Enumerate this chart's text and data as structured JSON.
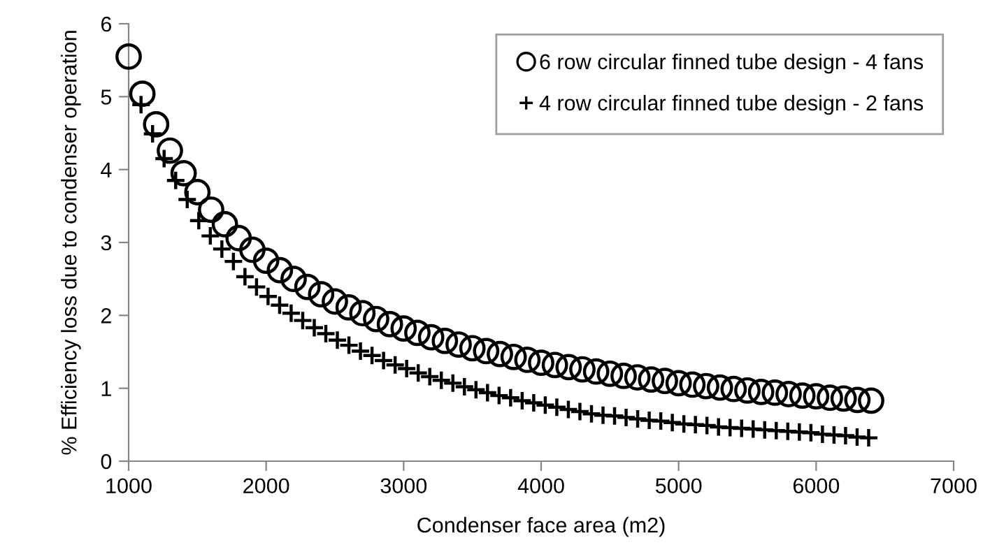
{
  "chart_data": {
    "type": "scatter",
    "xlabel": "Condenser face area (m2)",
    "ylabel": "% Efficiency loss due to condenser operation",
    "xlim": [
      1000,
      7000
    ],
    "xticks": [
      1000,
      2000,
      3000,
      4000,
      5000,
      6000,
      7000
    ],
    "ylim": [
      0,
      6
    ],
    "yticks": [
      0,
      1,
      2,
      3,
      4,
      5,
      6
    ],
    "grid": false,
    "legend": "top right",
    "series": [
      {
        "name": "6 row circular finned tube design - 4 fans",
        "color": "#000000",
        "marker": "circle",
        "x": [
          1000,
          1100,
          1200,
          1300,
          1400,
          1500,
          1600,
          1700,
          1800,
          1900,
          2000,
          2100,
          2200,
          2300,
          2400,
          2500,
          2600,
          2700,
          2800,
          2900,
          3000,
          3100,
          3200,
          3300,
          3400,
          3500,
          3600,
          3700,
          3800,
          3900,
          4000,
          4100,
          4200,
          4300,
          4400,
          4500,
          4600,
          4700,
          4800,
          4900,
          5000,
          5100,
          5200,
          5300,
          5400,
          5500,
          5600,
          5700,
          5800,
          5900,
          6000,
          6100,
          6200,
          6300,
          6400
        ],
        "values": [
          5.55,
          5.04,
          4.62,
          4.26,
          3.95,
          3.69,
          3.45,
          3.25,
          3.06,
          2.9,
          2.75,
          2.62,
          2.5,
          2.39,
          2.29,
          2.19,
          2.11,
          2.03,
          1.95,
          1.88,
          1.82,
          1.76,
          1.7,
          1.65,
          1.6,
          1.55,
          1.51,
          1.47,
          1.43,
          1.39,
          1.35,
          1.32,
          1.29,
          1.26,
          1.23,
          1.2,
          1.17,
          1.15,
          1.12,
          1.1,
          1.07,
          1.05,
          1.03,
          1.01,
          0.99,
          0.97,
          0.95,
          0.94,
          0.92,
          0.9,
          0.89,
          0.87,
          0.86,
          0.84,
          0.83
        ]
      },
      {
        "name": "4 row circular finned tube design - 2 fans",
        "color": "#000000",
        "marker": "cross",
        "x": [
          1090,
          1174,
          1258,
          1342,
          1426,
          1510,
          1594,
          1678,
          1762,
          1846,
          1930,
          2014,
          2098,
          2182,
          2266,
          2350,
          2434,
          2518,
          2602,
          2686,
          2770,
          2854,
          2938,
          3022,
          3106,
          3190,
          3274,
          3358,
          3442,
          3526,
          3610,
          3694,
          3778,
          3862,
          3946,
          4030,
          4114,
          4198,
          4282,
          4366,
          4450,
          4534,
          4618,
          4702,
          4786,
          4870,
          4954,
          5038,
          5122,
          5206,
          5290,
          5374,
          5458,
          5542,
          5626,
          5710,
          5794,
          5878,
          5962,
          6046,
          6130,
          6214,
          6298,
          6382
        ],
        "values": [
          4.89,
          4.49,
          4.15,
          3.85,
          3.59,
          3.3,
          3.09,
          2.91,
          2.74,
          2.53,
          2.39,
          2.26,
          2.14,
          2.03,
          1.93,
          1.83,
          1.75,
          1.66,
          1.59,
          1.51,
          1.45,
          1.38,
          1.32,
          1.27,
          1.21,
          1.16,
          1.11,
          1.07,
          1.02,
          0.98,
          0.94,
          0.9,
          0.87,
          0.83,
          0.8,
          0.77,
          0.74,
          0.71,
          0.68,
          0.65,
          0.63,
          0.62,
          0.6,
          0.58,
          0.56,
          0.55,
          0.53,
          0.51,
          0.5,
          0.49,
          0.47,
          0.46,
          0.45,
          0.44,
          0.43,
          0.42,
          0.41,
          0.4,
          0.39,
          0.37,
          0.36,
          0.35,
          0.33,
          0.32
        ]
      }
    ]
  }
}
